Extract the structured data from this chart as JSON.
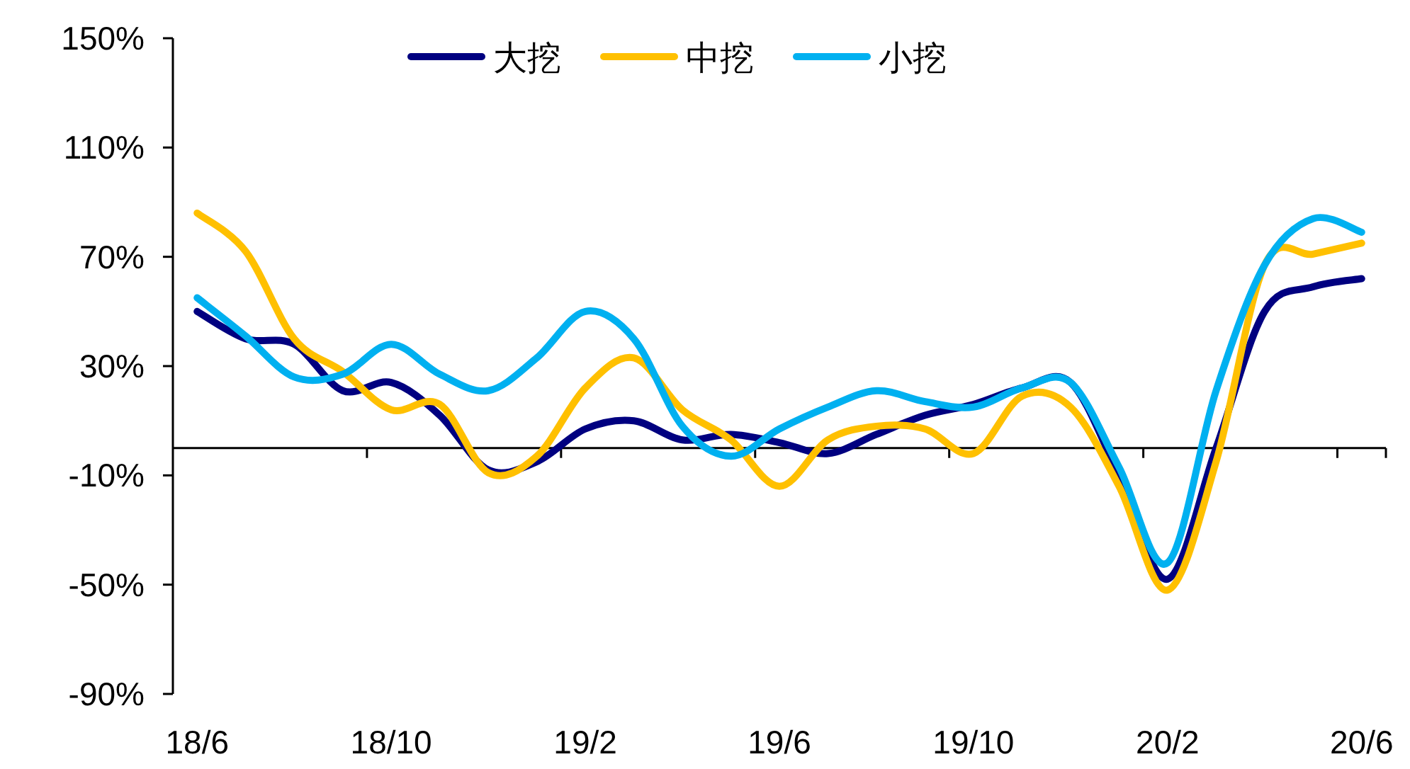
{
  "chart_data": {
    "type": "line",
    "categories": [
      "18/6",
      null,
      null,
      null,
      "18/10",
      null,
      null,
      null,
      "19/2",
      null,
      null,
      null,
      "19/6",
      null,
      null,
      null,
      "19/10",
      null,
      null,
      null,
      "20/2",
      null,
      null,
      null,
      "20/6"
    ],
    "ylim": [
      -90,
      150
    ],
    "yticks": [
      {
        "value": -90,
        "label": "-90%"
      },
      {
        "value": -50,
        "label": "-50%"
      },
      {
        "value": -10,
        "label": "-10%"
      },
      {
        "value": 30,
        "label": "30%"
      },
      {
        "value": 70,
        "label": "70%"
      },
      {
        "value": 110,
        "label": "110%"
      },
      {
        "value": 150,
        "label": "150%"
      }
    ],
    "legend": "top",
    "grid": false,
    "marker": "none",
    "line_style": "solid",
    "series": [
      {
        "name": "大挖",
        "color": "#000080",
        "values": [
          50,
          40,
          38,
          21,
          24,
          12,
          -8,
          -5,
          7,
          10,
          3,
          5,
          2,
          -2,
          5,
          12,
          16,
          22,
          24,
          -10,
          -48,
          0,
          50,
          59,
          62
        ]
      },
      {
        "name": "中挖",
        "color": "#ffc000",
        "values": [
          86,
          72,
          40,
          28,
          14,
          16,
          -9,
          -3,
          22,
          33,
          14,
          3,
          -14,
          3,
          8,
          7,
          -2,
          19,
          15,
          -14,
          -52,
          -5,
          67,
          71,
          75
        ]
      },
      {
        "name": "小挖",
        "color": "#00b0f0",
        "values": [
          55,
          41,
          26,
          27,
          38,
          27,
          21,
          33,
          50,
          40,
          8,
          -3,
          7,
          15,
          21,
          17,
          15,
          22,
          24,
          -7,
          -42,
          21,
          67,
          84,
          79
        ]
      }
    ]
  }
}
